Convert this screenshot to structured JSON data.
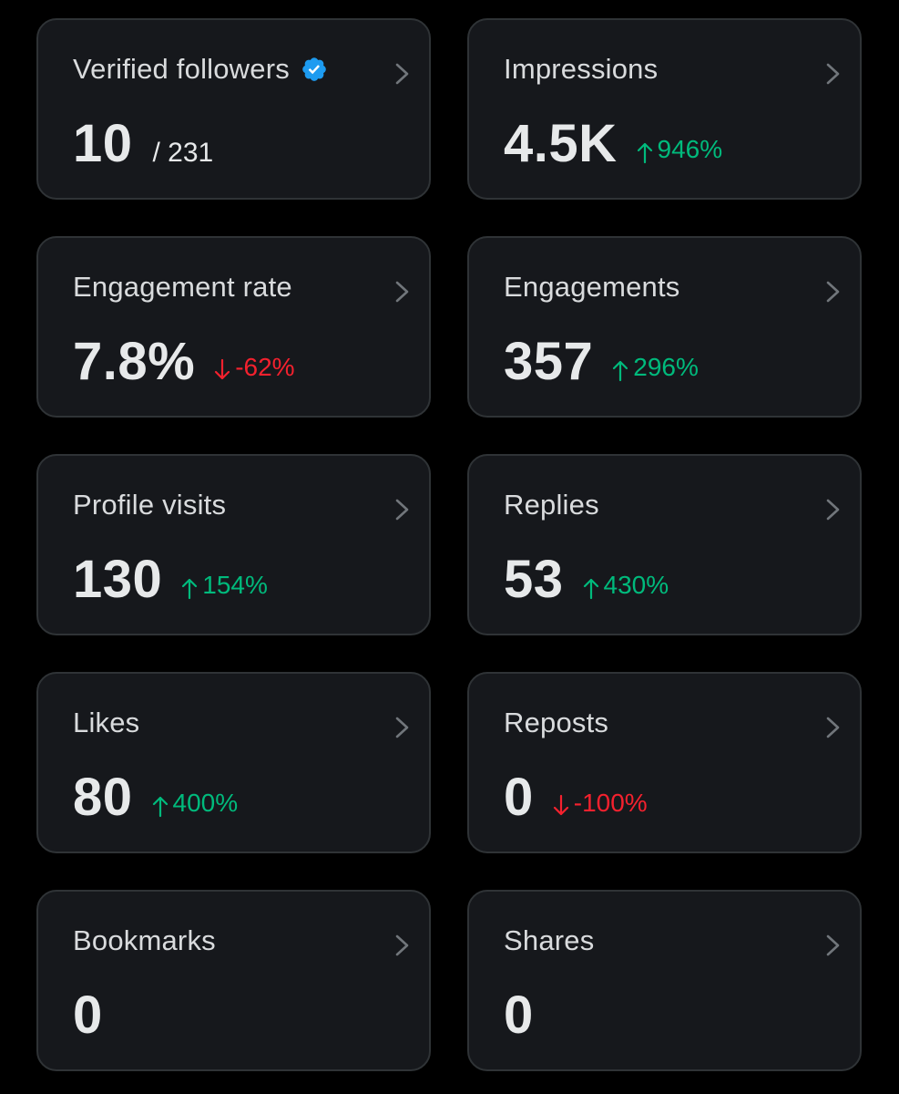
{
  "colors": {
    "background": "#000000",
    "card_bg": "#16181c",
    "card_border": "#2f3336",
    "positive": "#00ba7c",
    "negative": "#f4212e",
    "verified": "#1d9bf0"
  },
  "cards": [
    {
      "label": "Verified followers",
      "value": "10",
      "sub": "/ 231",
      "delta": "",
      "trend": "none",
      "icon": "verified-badge-icon"
    },
    {
      "label": "Impressions",
      "value": "4.5K",
      "sub": "",
      "delta": "946%",
      "trend": "up"
    },
    {
      "label": "Engagement rate",
      "value": "7.8%",
      "sub": "",
      "delta": "-62%",
      "trend": "down"
    },
    {
      "label": "Engagements",
      "value": "357",
      "sub": "",
      "delta": "296%",
      "trend": "up"
    },
    {
      "label": "Profile visits",
      "value": "130",
      "sub": "",
      "delta": "154%",
      "trend": "up"
    },
    {
      "label": "Replies",
      "value": "53",
      "sub": "",
      "delta": "430%",
      "trend": "up"
    },
    {
      "label": "Likes",
      "value": "80",
      "sub": "",
      "delta": "400%",
      "trend": "up"
    },
    {
      "label": "Reposts",
      "value": "0",
      "sub": "",
      "delta": "-100%",
      "trend": "down"
    },
    {
      "label": "Bookmarks",
      "value": "0",
      "sub": "",
      "delta": "",
      "trend": "none"
    },
    {
      "label": "Shares",
      "value": "0",
      "sub": "",
      "delta": "",
      "trend": "none"
    }
  ]
}
